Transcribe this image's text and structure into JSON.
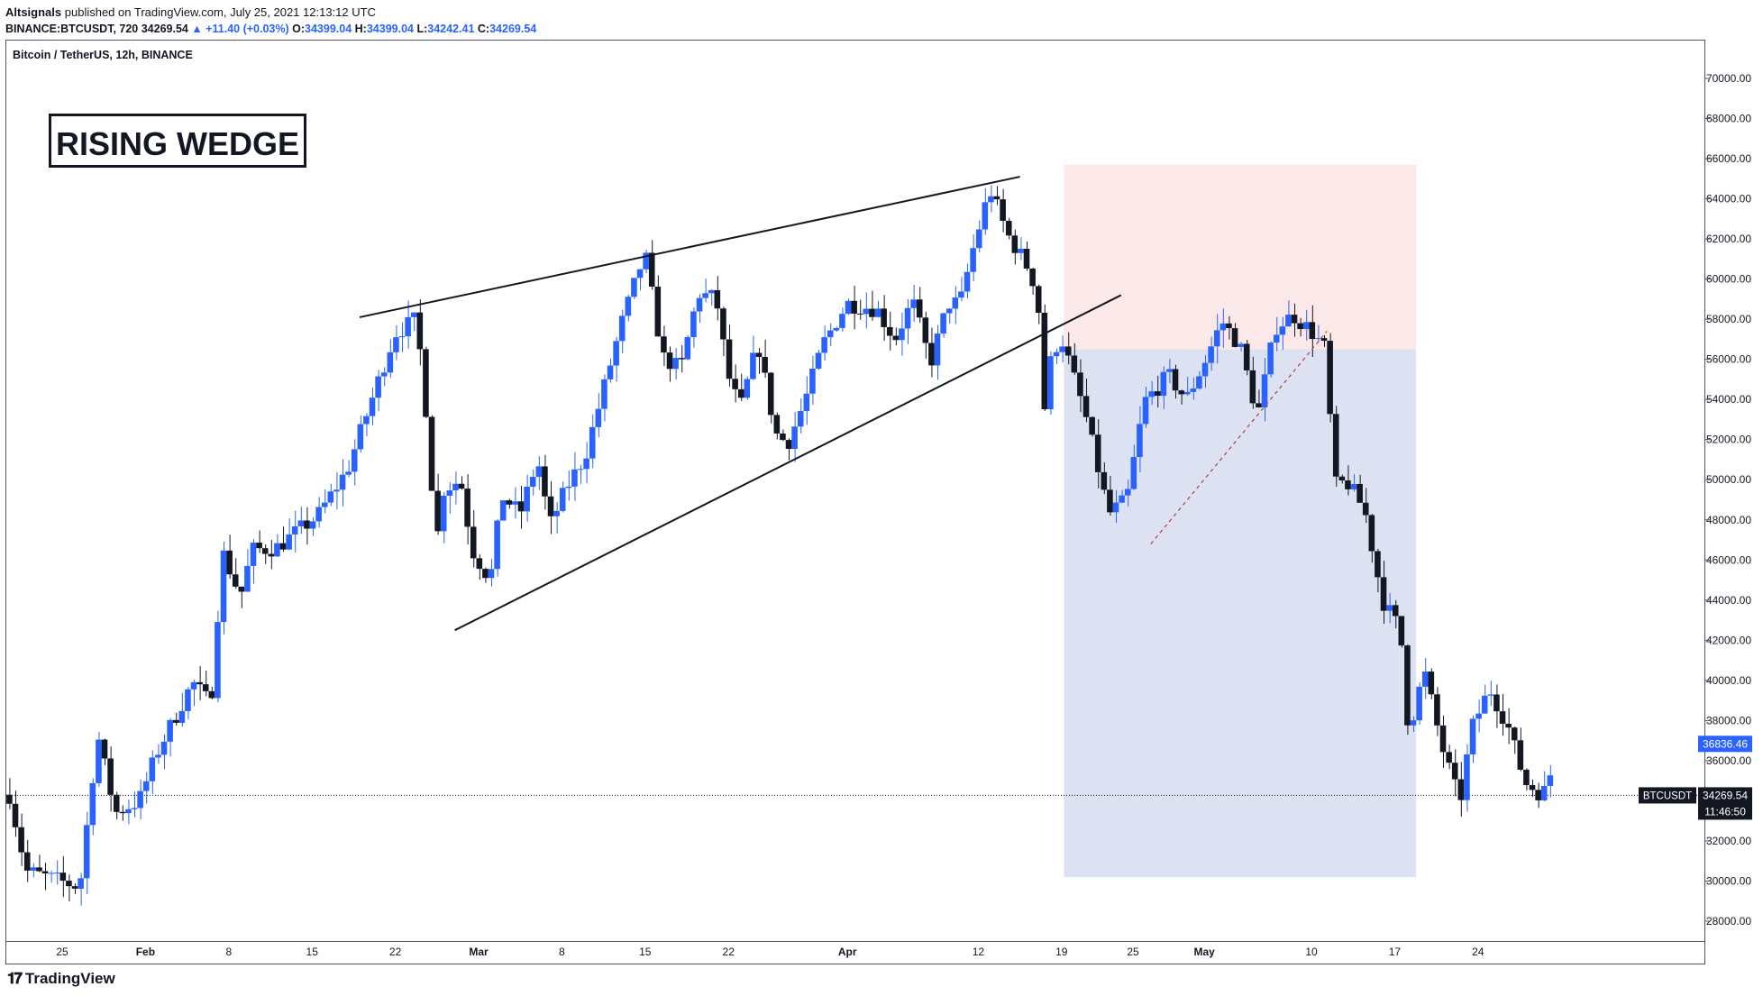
{
  "header": {
    "publisher": "Altsignals",
    "published_text": "published on TradingView.com, July 25, 2021 12:13:12 UTC",
    "symbol_line": "BINANCE:BTCUSDT, 720",
    "last": "34269.54",
    "change": "▲ +11.40 (+0.03%)",
    "o_label": "O:",
    "o": "34399.04",
    "h_label": "H:",
    "h": "34399.04",
    "l_label": "L:",
    "l": "34242.41",
    "c_label": "C:",
    "c": "34269.54"
  },
  "footer": {
    "brand": "TradingView",
    "logo_icon": "tradingview-logo-icon"
  },
  "colors": {
    "up": "#2962ff",
    "down": "#131722",
    "short_zone": "#f9e2e1",
    "profit_zone": "#cfd6ec"
  },
  "chart_data": {
    "type": "candlestick",
    "title": "Bitcoin / TetherUS, 12h, BINANCE",
    "annotation_box": "RISING WEDGE",
    "y_axis": {
      "ylim": [
        26800,
        70500
      ],
      "ticks": [
        28000,
        30000,
        32000,
        34000,
        36000,
        38000,
        40000,
        42000,
        44000,
        46000,
        48000,
        50000,
        52000,
        54000,
        56000,
        58000,
        60000,
        62000,
        64000,
        66000,
        68000,
        70000
      ],
      "tick_labels": [
        "28000.00",
        "30000.00",
        "32000.00",
        "34000.00",
        "36000.00",
        "38000.00",
        "40000.00",
        "42000.00",
        "44000.00",
        "46000.00",
        "48000.00",
        "50000.00",
        "52000.00",
        "54000.00",
        "56000.00",
        "58000.00",
        "60000.00",
        "62000.00",
        "64000.00",
        "66000.00",
        "68000.00",
        "70000.00"
      ]
    },
    "x_axis": {
      "range_days": [
        -4.5,
        57.8
      ],
      "ticks": [
        {
          "day": 0,
          "label": "25"
        },
        {
          "day": 7,
          "label": "Feb"
        },
        {
          "day": 14,
          "label": "8"
        },
        {
          "day": 21,
          "label": "15"
        },
        {
          "day": 28,
          "label": "22"
        },
        {
          "day": 35,
          "label": "Mar"
        },
        {
          "day": 42,
          "label": "8"
        },
        {
          "day": 49,
          "label": "15"
        },
        {
          "day": 56,
          "label": "22"
        },
        {
          "day": 66,
          "label": "Apr"
        },
        {
          "day": 77,
          "label": "12"
        },
        {
          "day": 84,
          "label": "19"
        },
        {
          "day": 90,
          "label": "25"
        },
        {
          "day": 96,
          "label": "May"
        },
        {
          "day": 105,
          "label": "10"
        },
        {
          "day": 112,
          "label": "17"
        },
        {
          "day": 119,
          "label": "24"
        }
      ]
    },
    "waypoints": [
      [
        -4.4,
        34300
      ],
      [
        -3,
        30500
      ],
      [
        1.5,
        29700
      ],
      [
        3,
        37300
      ],
      [
        4.5,
        33400
      ],
      [
        6.5,
        34000
      ],
      [
        8,
        36400
      ],
      [
        11,
        39900
      ],
      [
        12.5,
        38800
      ],
      [
        13.5,
        46400
      ],
      [
        15,
        44200
      ],
      [
        16,
        46500
      ],
      [
        18,
        46600
      ],
      [
        21.5,
        48200
      ],
      [
        24,
        50500
      ],
      [
        28,
        57300
      ],
      [
        29.8,
        58000
      ],
      [
        30.5,
        54300
      ],
      [
        31.5,
        46800
      ],
      [
        32,
        49500
      ],
      [
        33.5,
        50000
      ],
      [
        34.5,
        46500
      ],
      [
        36,
        45000
      ],
      [
        37,
        49200
      ],
      [
        38.5,
        48300
      ],
      [
        40,
        51000
      ],
      [
        41,
        47700
      ],
      [
        42.5,
        49700
      ],
      [
        44,
        51200
      ],
      [
        47,
        57700
      ],
      [
        49,
        61300
      ],
      [
        50.5,
        56100
      ],
      [
        52,
        55500
      ],
      [
        53.5,
        59300
      ],
      [
        55,
        59000
      ],
      [
        56,
        55200
      ],
      [
        57,
        53500
      ],
      [
        58.5,
        56800
      ],
      [
        60,
        52300
      ],
      [
        61,
        51800
      ],
      [
        62.5,
        54000
      ],
      [
        64,
        56800
      ],
      [
        66,
        58800
      ],
      [
        68.5,
        58500
      ],
      [
        70,
        57000
      ],
      [
        71.5,
        58900
      ],
      [
        73,
        55800
      ],
      [
        74.5,
        58800
      ],
      [
        75.5,
        58800
      ],
      [
        76.5,
        61300
      ],
      [
        78,
        64500
      ],
      [
        79.5,
        62200
      ],
      [
        81,
        60800
      ],
      [
        82,
        59400
      ],
      [
        82.6,
        53600
      ],
      [
        83.2,
        56300
      ],
      [
        84,
        57100
      ],
      [
        86,
        53300
      ],
      [
        88,
        48300
      ],
      [
        89.5,
        49000
      ],
      [
        91,
        53900
      ],
      [
        93,
        55200
      ],
      [
        94.5,
        54000
      ],
      [
        96,
        55800
      ],
      [
        97.5,
        57900
      ],
      [
        99,
        56700
      ],
      [
        100.5,
        53200
      ],
      [
        102,
        57600
      ],
      [
        103.5,
        58200
      ],
      [
        105,
        57400
      ],
      [
        106.2,
        56500
      ],
      [
        107,
        49700
      ],
      [
        108,
        49900
      ],
      [
        109.5,
        48500
      ],
      [
        111,
        44000
      ],
      [
        112.5,
        42500
      ],
      [
        113.2,
        37400
      ],
      [
        114.5,
        40500
      ],
      [
        116,
        36700
      ],
      [
        117.5,
        33900
      ],
      [
        118.5,
        37600
      ],
      [
        120,
        39600
      ],
      [
        121.5,
        37800
      ],
      [
        123,
        34900
      ],
      [
        124.5,
        34300
      ],
      [
        125.5,
        36000
      ]
    ],
    "rising_wedge": {
      "upper_line": [
        [
          25,
          58100
        ],
        [
          80.5,
          65100
        ]
      ],
      "lower_line": [
        [
          33,
          42500
        ],
        [
          89,
          59200
        ]
      ],
      "projection_dashed": [
        [
          91.5,
          46800
        ],
        [
          106.3,
          57400
        ]
      ]
    },
    "short_position": {
      "x_range": [
        84.2,
        113.8
      ],
      "stop_zone": [
        56500,
        65700
      ],
      "target_zone": [
        30200,
        56500
      ]
    },
    "price_labels": [
      {
        "value": 36836.46,
        "label": "36836.46"
      },
      {
        "value": 34269.54,
        "label": "34269.54",
        "symbol": "BTCUSDT",
        "countdown": "11:46:50"
      }
    ]
  }
}
